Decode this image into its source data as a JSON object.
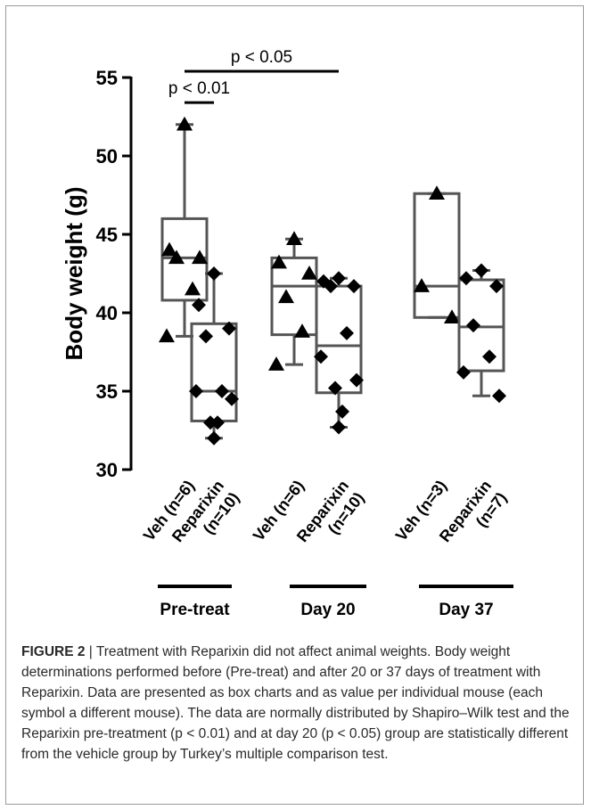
{
  "chart_data": {
    "type": "box",
    "ylabel": "Body weight (g)",
    "ylim": [
      30,
      55
    ],
    "yticks": [
      "30",
      "35",
      "40",
      "45",
      "50",
      "55"
    ],
    "categories": [
      "Veh (n=6)",
      "Reparixin (n=10)",
      "Veh (n=6)",
      "Reparixin (n=10)",
      "Veh (n=3)",
      "Reparixin (n=7)"
    ],
    "groups": [
      {
        "label": "Pre-treat",
        "members": [
          0,
          1
        ]
      },
      {
        "label": "Day 20",
        "members": [
          2,
          3
        ]
      },
      {
        "label": "Day 37",
        "members": [
          4,
          5
        ]
      }
    ],
    "series": [
      {
        "label": "Veh (n=6)",
        "marker": "triangle",
        "min": 38.5,
        "q1": 40.8,
        "median": 43.5,
        "q3": 46.0,
        "max": 52.0,
        "points": [
          52.0,
          44.0,
          43.5,
          43.5,
          41.5,
          38.5
        ]
      },
      {
        "label": "Reparixin (n=10)",
        "marker": "diamond",
        "min": 32.0,
        "q1": 33.1,
        "median": 35.0,
        "q3": 39.3,
        "max": 42.5,
        "points": [
          42.5,
          40.5,
          39.0,
          38.5,
          35.0,
          35.0,
          34.5,
          33.0,
          33.0,
          32.0
        ]
      },
      {
        "label": "Veh (n=6)",
        "marker": "triangle",
        "min": 36.7,
        "q1": 38.6,
        "median": 41.7,
        "q3": 43.5,
        "max": 44.7,
        "points": [
          44.7,
          43.2,
          42.5,
          41.0,
          38.8,
          36.7
        ]
      },
      {
        "label": "Reparixin (n=10)",
        "marker": "diamond",
        "min": 32.7,
        "q1": 34.9,
        "median": 37.9,
        "q3": 41.7,
        "max": 42.2,
        "points": [
          42.2,
          42.0,
          41.7,
          41.7,
          38.7,
          37.2,
          35.7,
          35.2,
          33.7,
          32.7
        ]
      },
      {
        "label": "Veh (n=3)",
        "marker": "triangle",
        "min": 39.7,
        "q1": 39.7,
        "median": 41.7,
        "q3": 47.6,
        "max": 47.6,
        "points": [
          47.6,
          41.7,
          39.7
        ]
      },
      {
        "label": "Reparixin (n=7)",
        "marker": "diamond",
        "min": 34.7,
        "q1": 36.3,
        "median": 39.1,
        "q3": 42.1,
        "max": 42.7,
        "points": [
          42.7,
          42.2,
          41.7,
          39.2,
          37.2,
          36.2,
          34.7
        ]
      }
    ],
    "significance": [
      {
        "from": 0,
        "to": 1,
        "y": 53.4,
        "label": "p < 0.01"
      },
      {
        "from": 0,
        "to": 3,
        "y": 55.4,
        "label": "p < 0.05"
      }
    ]
  },
  "caption": {
    "label": "FIGURE 2",
    "separator": " | ",
    "text": "Treatment with Reparixin did not affect animal weights. Body weight determinations performed before (Pre-treat) and after 20 or 37 days of treatment with Reparixin. Data are presented as box charts and as value per individual mouse (each symbol a different mouse). The data are normally distributed by Shapiro–Wilk test and the Reparixin pre-treatment (p < 0.01) and at day 20 (p < 0.05) group are statistically different from the vehicle group by Turkey’s multiple comparison test."
  }
}
